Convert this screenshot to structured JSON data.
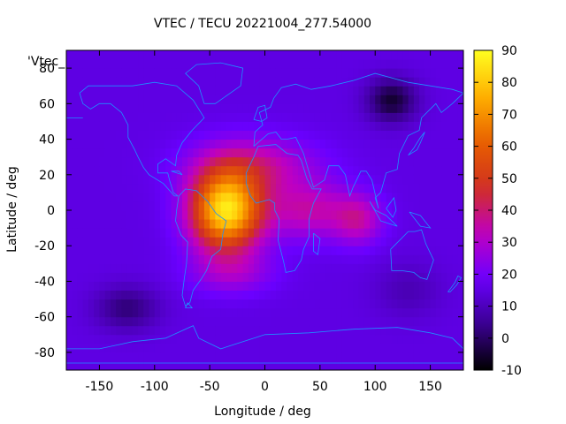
{
  "chart_data": {
    "type": "heatmap",
    "title": "VTEC / TECU 20221004_277.54000",
    "xlabel": "Longitude / deg",
    "ylabel": "Latitude / deg",
    "series_label": "'Vtec_",
    "xlim": [
      -180,
      180
    ],
    "ylim": [
      -90,
      90
    ],
    "x_ticks": [
      -150,
      -100,
      -50,
      0,
      50,
      100,
      150
    ],
    "y_ticks": [
      -80,
      -60,
      -40,
      -20,
      0,
      20,
      40,
      60,
      80
    ],
    "colorbar": {
      "range": [
        -10,
        90
      ],
      "ticks": [
        -10,
        0,
        10,
        20,
        30,
        40,
        50,
        60,
        70,
        80,
        90
      ],
      "palette": [
        "#000000",
        "#3a0090",
        "#6a00ff",
        "#c000c0",
        "#d03020",
        "#e86000",
        "#ffb000",
        "#ffff20"
      ]
    },
    "features": [
      {
        "name": "equatorial anomaly peak",
        "lon": -35,
        "lat": 0,
        "vtec": 85
      },
      {
        "name": "african sector enhancement",
        "lon": 40,
        "lat": 0,
        "vtec": 50
      },
      {
        "name": "south atlantic enhancement",
        "lon": -30,
        "lat": -35,
        "vtec": 35
      },
      {
        "name": "northern depletion",
        "lon": 115,
        "lat": 62,
        "vtec": -5
      },
      {
        "name": "southern depletion",
        "lon": -125,
        "lat": -55,
        "vtec": 2
      },
      {
        "name": "background",
        "vtec": 15
      }
    ],
    "coastline_color": "#1e90ff"
  }
}
